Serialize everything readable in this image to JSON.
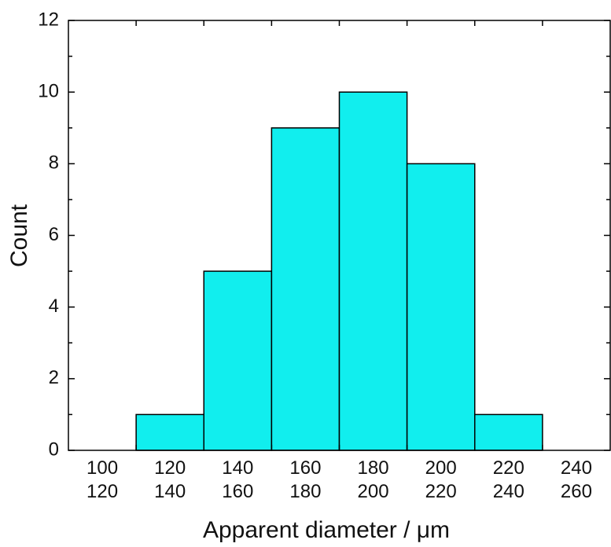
{
  "chart_data": {
    "type": "bar",
    "x_label": "Apparent diameter / μm",
    "y_label": "Count",
    "categories": [
      [
        "100",
        "120"
      ],
      [
        "120",
        "140"
      ],
      [
        "140",
        "160"
      ],
      [
        "160",
        "180"
      ],
      [
        "180",
        "200"
      ],
      [
        "200",
        "220"
      ],
      [
        "220",
        "240"
      ],
      [
        "240",
        "260"
      ]
    ],
    "values": [
      0,
      1,
      5,
      9,
      10,
      8,
      1,
      0
    ],
    "color": "#11eeee",
    "ylim": [
      0,
      12
    ],
    "yticks": [
      0,
      2,
      4,
      6,
      8,
      10,
      12
    ],
    "y_minor_ticks": [
      1,
      3,
      5,
      7,
      9,
      11
    ]
  }
}
